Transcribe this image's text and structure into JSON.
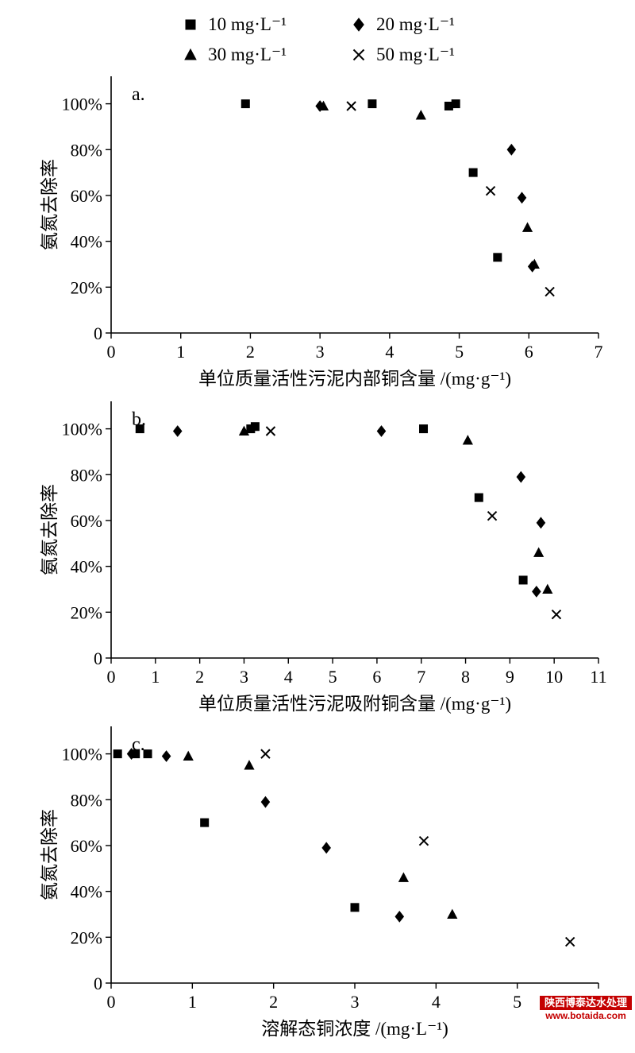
{
  "legend": {
    "items": [
      {
        "label": "10 mg·L⁻¹",
        "marker": "square"
      },
      {
        "label": "20 mg·L⁻¹",
        "marker": "diamond"
      },
      {
        "label": "30 mg·L⁻¹",
        "marker": "triangle"
      },
      {
        "label": "50 mg·L⁻¹",
        "marker": "x"
      }
    ]
  },
  "watermark": {
    "line1": "陕西博泰达水处理",
    "line2": "www.botaida.com"
  },
  "chart_data": [
    {
      "type": "scatter",
      "panel_label": "a.",
      "xlabel": "单位质量活性污泥内部铜含量 /(mg·g⁻¹)",
      "ylabel": "氨氮去除率",
      "xlim": [
        0,
        7
      ],
      "xticks": [
        0,
        1,
        2,
        3,
        4,
        5,
        6,
        7
      ],
      "ylim": [
        0,
        112
      ],
      "yticks": [
        {
          "v": 0,
          "label": "0"
        },
        {
          "v": 20,
          "label": "20%"
        },
        {
          "v": 40,
          "label": "40%"
        },
        {
          "v": 60,
          "label": "60%"
        },
        {
          "v": 80,
          "label": "80%"
        },
        {
          "v": 100,
          "label": "100%"
        }
      ],
      "grid": false,
      "legend_position": "top",
      "series": [
        {
          "name": "10 mg·L⁻¹",
          "marker": "square",
          "points": [
            [
              1.93,
              100
            ],
            [
              3.75,
              100
            ],
            [
              4.85,
              99
            ],
            [
              4.95,
              100
            ],
            [
              5.2,
              70
            ],
            [
              5.55,
              33
            ]
          ]
        },
        {
          "name": "20 mg·L⁻¹",
          "marker": "diamond",
          "points": [
            [
              3.0,
              99
            ],
            [
              5.75,
              80
            ],
            [
              5.9,
              59
            ],
            [
              6.05,
              29
            ]
          ]
        },
        {
          "name": "30 mg·L⁻¹",
          "marker": "triangle",
          "points": [
            [
              3.05,
              99
            ],
            [
              4.45,
              95
            ],
            [
              5.98,
              46
            ],
            [
              6.08,
              30
            ]
          ]
        },
        {
          "name": "50 mg·L⁻¹",
          "marker": "x",
          "points": [
            [
              3.45,
              99
            ],
            [
              5.45,
              62
            ],
            [
              6.3,
              18
            ]
          ]
        }
      ]
    },
    {
      "type": "scatter",
      "panel_label": "b.",
      "xlabel": "单位质量活性污泥吸附铜含量 /(mg·g⁻¹)",
      "ylabel": "氨氮去除率",
      "xlim": [
        0,
        11
      ],
      "xticks": [
        0,
        1,
        2,
        3,
        4,
        5,
        6,
        7,
        8,
        9,
        10,
        11
      ],
      "ylim": [
        0,
        112
      ],
      "yticks": [
        {
          "v": 0,
          "label": "0"
        },
        {
          "v": 20,
          "label": "20%"
        },
        {
          "v": 40,
          "label": "40%"
        },
        {
          "v": 60,
          "label": "60%"
        },
        {
          "v": 80,
          "label": "80%"
        },
        {
          "v": 100,
          "label": "100%"
        }
      ],
      "grid": false,
      "legend_position": "top",
      "series": [
        {
          "name": "10 mg·L⁻¹",
          "marker": "square",
          "points": [
            [
              0.65,
              100
            ],
            [
              3.15,
              100
            ],
            [
              3.25,
              101
            ],
            [
              7.05,
              100
            ],
            [
              8.3,
              70
            ],
            [
              9.3,
              34
            ]
          ]
        },
        {
          "name": "20 mg·L⁻¹",
          "marker": "diamond",
          "points": [
            [
              1.5,
              99
            ],
            [
              6.1,
              99
            ],
            [
              9.25,
              79
            ],
            [
              9.7,
              59
            ],
            [
              9.6,
              29
            ]
          ]
        },
        {
          "name": "30 mg·L⁻¹",
          "marker": "triangle",
          "points": [
            [
              3.0,
              99
            ],
            [
              8.05,
              95
            ],
            [
              9.65,
              46
            ],
            [
              9.85,
              30
            ]
          ]
        },
        {
          "name": "50 mg·L⁻¹",
          "marker": "x",
          "points": [
            [
              3.6,
              99
            ],
            [
              8.6,
              62
            ],
            [
              10.05,
              19
            ]
          ]
        }
      ]
    },
    {
      "type": "scatter",
      "panel_label": "c.",
      "xlabel": "溶解态铜浓度 /(mg·L⁻¹)",
      "ylabel": "氨氮去除率",
      "xlim": [
        0,
        6
      ],
      "xticks": [
        0,
        1,
        2,
        3,
        4,
        5,
        6
      ],
      "ylim": [
        0,
        112
      ],
      "yticks": [
        {
          "v": 0,
          "label": "0"
        },
        {
          "v": 20,
          "label": "20%"
        },
        {
          "v": 40,
          "label": "40%"
        },
        {
          "v": 60,
          "label": "60%"
        },
        {
          "v": 80,
          "label": "80%"
        },
        {
          "v": 100,
          "label": "100%"
        }
      ],
      "grid": false,
      "legend_position": "top",
      "series": [
        {
          "name": "10 mg·L⁻¹",
          "marker": "square",
          "points": [
            [
              0.08,
              100
            ],
            [
              0.3,
              100
            ],
            [
              0.45,
              100
            ],
            [
              1.15,
              70
            ],
            [
              3.0,
              33
            ]
          ]
        },
        {
          "name": "20 mg·L⁻¹",
          "marker": "diamond",
          "points": [
            [
              0.25,
              100
            ],
            [
              0.68,
              99
            ],
            [
              1.9,
              79
            ],
            [
              2.65,
              59
            ],
            [
              3.55,
              29
            ]
          ]
        },
        {
          "name": "30 mg·L⁻¹",
          "marker": "triangle",
          "points": [
            [
              0.95,
              99
            ],
            [
              1.7,
              95
            ],
            [
              3.6,
              46
            ],
            [
              4.2,
              30
            ]
          ]
        },
        {
          "name": "50 mg·L⁻¹",
          "marker": "x",
          "points": [
            [
              1.9,
              100
            ],
            [
              3.85,
              62
            ],
            [
              5.65,
              18
            ]
          ]
        }
      ]
    }
  ]
}
